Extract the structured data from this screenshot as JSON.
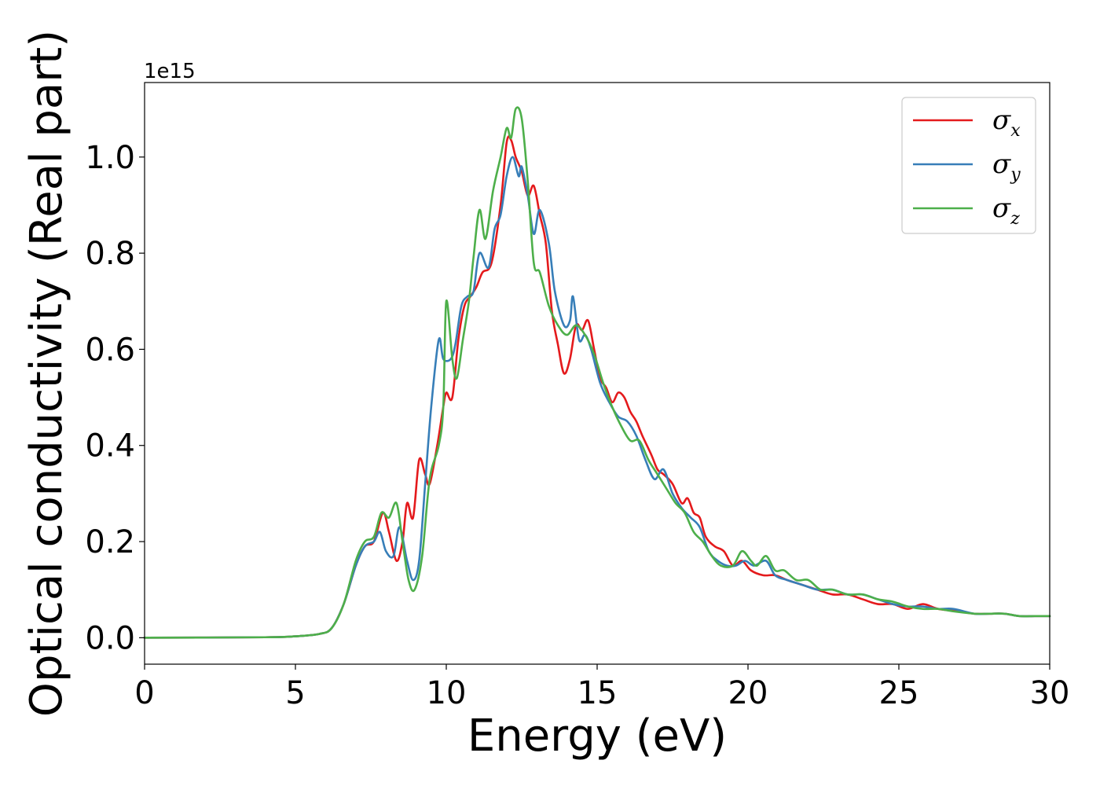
{
  "chart_data": {
    "type": "line",
    "xlabel": "Energy (eV)",
    "ylabel": "Optical conductivity (Real part)",
    "y_offset_label": "1e15",
    "xlim": [
      0,
      30
    ],
    "ylim": [
      -0.055,
      1.155
    ],
    "x_ticks": [
      0,
      5,
      10,
      15,
      20,
      25,
      30
    ],
    "x_tick_labels": [
      "0",
      "5",
      "10",
      "15",
      "20",
      "25",
      "30"
    ],
    "y_ticks": [
      0.0,
      0.2,
      0.4,
      0.6,
      0.8,
      1.0
    ],
    "y_tick_labels": [
      "0.0",
      "0.2",
      "0.4",
      "0.6",
      "0.8",
      "1.0"
    ],
    "grid": false,
    "legend_position": "top-right",
    "series": [
      {
        "name": "σx",
        "symbol": "σ",
        "subscript": "x",
        "color": "#e41a1c",
        "points": [
          [
            0,
            0
          ],
          [
            4,
            0.001
          ],
          [
            5,
            0.003
          ],
          [
            5.8,
            0.008
          ],
          [
            6.2,
            0.02
          ],
          [
            6.6,
            0.07
          ],
          [
            7.0,
            0.15
          ],
          [
            7.3,
            0.19
          ],
          [
            7.6,
            0.2
          ],
          [
            7.9,
            0.26
          ],
          [
            8.1,
            0.22
          ],
          [
            8.35,
            0.16
          ],
          [
            8.55,
            0.2
          ],
          [
            8.7,
            0.28
          ],
          [
            8.9,
            0.25
          ],
          [
            9.1,
            0.37
          ],
          [
            9.3,
            0.34
          ],
          [
            9.45,
            0.32
          ],
          [
            9.7,
            0.4
          ],
          [
            9.9,
            0.48
          ],
          [
            10.0,
            0.51
          ],
          [
            10.2,
            0.5
          ],
          [
            10.4,
            0.62
          ],
          [
            10.6,
            0.69
          ],
          [
            10.8,
            0.71
          ],
          [
            11.0,
            0.73
          ],
          [
            11.2,
            0.76
          ],
          [
            11.5,
            0.78
          ],
          [
            11.8,
            0.9
          ],
          [
            12.0,
            1.03
          ],
          [
            12.15,
            1.035
          ],
          [
            12.3,
            1.0
          ],
          [
            12.5,
            0.97
          ],
          [
            12.7,
            0.92
          ],
          [
            12.9,
            0.94
          ],
          [
            13.1,
            0.88
          ],
          [
            13.3,
            0.82
          ],
          [
            13.5,
            0.68
          ],
          [
            13.7,
            0.61
          ],
          [
            13.9,
            0.55
          ],
          [
            14.1,
            0.58
          ],
          [
            14.3,
            0.65
          ],
          [
            14.5,
            0.64
          ],
          [
            14.7,
            0.66
          ],
          [
            14.9,
            0.6
          ],
          [
            15.1,
            0.54
          ],
          [
            15.3,
            0.52
          ],
          [
            15.5,
            0.49
          ],
          [
            15.7,
            0.51
          ],
          [
            15.9,
            0.5
          ],
          [
            16.1,
            0.47
          ],
          [
            16.3,
            0.45
          ],
          [
            16.5,
            0.42
          ],
          [
            16.8,
            0.38
          ],
          [
            17.0,
            0.35
          ],
          [
            17.2,
            0.34
          ],
          [
            17.5,
            0.32
          ],
          [
            17.8,
            0.28
          ],
          [
            18.0,
            0.29
          ],
          [
            18.2,
            0.26
          ],
          [
            18.4,
            0.25
          ],
          [
            18.6,
            0.21
          ],
          [
            18.9,
            0.19
          ],
          [
            19.2,
            0.18
          ],
          [
            19.5,
            0.15
          ],
          [
            19.8,
            0.16
          ],
          [
            20.1,
            0.14
          ],
          [
            20.5,
            0.13
          ],
          [
            20.9,
            0.13
          ],
          [
            21.3,
            0.12
          ],
          [
            21.8,
            0.11
          ],
          [
            22.3,
            0.1
          ],
          [
            22.8,
            0.09
          ],
          [
            23.3,
            0.09
          ],
          [
            23.8,
            0.08
          ],
          [
            24.3,
            0.07
          ],
          [
            24.8,
            0.07
          ],
          [
            25.3,
            0.06
          ],
          [
            25.8,
            0.07
          ],
          [
            26.3,
            0.06
          ],
          [
            27,
            0.055
          ],
          [
            27.5,
            0.05
          ],
          [
            28,
            0.05
          ],
          [
            28.5,
            0.05
          ],
          [
            29,
            0.045
          ],
          [
            29.5,
            0.045
          ],
          [
            30,
            0.045
          ]
        ]
      },
      {
        "name": "σy",
        "symbol": "σ",
        "subscript": "y",
        "color": "#377eb8",
        "points": [
          [
            0,
            0
          ],
          [
            4,
            0.001
          ],
          [
            5,
            0.003
          ],
          [
            5.8,
            0.008
          ],
          [
            6.2,
            0.02
          ],
          [
            6.6,
            0.07
          ],
          [
            7.0,
            0.15
          ],
          [
            7.3,
            0.19
          ],
          [
            7.6,
            0.2
          ],
          [
            7.8,
            0.22
          ],
          [
            8.0,
            0.18
          ],
          [
            8.25,
            0.17
          ],
          [
            8.45,
            0.23
          ],
          [
            8.7,
            0.16
          ],
          [
            8.9,
            0.12
          ],
          [
            9.1,
            0.16
          ],
          [
            9.3,
            0.32
          ],
          [
            9.5,
            0.48
          ],
          [
            9.75,
            0.62
          ],
          [
            9.9,
            0.58
          ],
          [
            10.15,
            0.58
          ],
          [
            10.3,
            0.61
          ],
          [
            10.5,
            0.69
          ],
          [
            10.7,
            0.71
          ],
          [
            10.9,
            0.72
          ],
          [
            11.1,
            0.8
          ],
          [
            11.4,
            0.77
          ],
          [
            11.6,
            0.85
          ],
          [
            11.8,
            0.88
          ],
          [
            12.0,
            0.96
          ],
          [
            12.2,
            1.0
          ],
          [
            12.4,
            0.96
          ],
          [
            12.5,
            0.98
          ],
          [
            12.7,
            0.92
          ],
          [
            12.9,
            0.84
          ],
          [
            13.1,
            0.89
          ],
          [
            13.4,
            0.82
          ],
          [
            13.6,
            0.72
          ],
          [
            13.9,
            0.65
          ],
          [
            14.1,
            0.66
          ],
          [
            14.2,
            0.71
          ],
          [
            14.4,
            0.62
          ],
          [
            14.6,
            0.63
          ],
          [
            14.8,
            0.6
          ],
          [
            15.1,
            0.53
          ],
          [
            15.4,
            0.49
          ],
          [
            15.7,
            0.46
          ],
          [
            16.0,
            0.45
          ],
          [
            16.3,
            0.42
          ],
          [
            16.6,
            0.37
          ],
          [
            16.9,
            0.33
          ],
          [
            17.2,
            0.35
          ],
          [
            17.5,
            0.3
          ],
          [
            17.8,
            0.27
          ],
          [
            18.1,
            0.25
          ],
          [
            18.4,
            0.23
          ],
          [
            18.7,
            0.18
          ],
          [
            19.0,
            0.16
          ],
          [
            19.3,
            0.15
          ],
          [
            19.6,
            0.15
          ],
          [
            19.9,
            0.16
          ],
          [
            20.2,
            0.15
          ],
          [
            20.6,
            0.16
          ],
          [
            20.9,
            0.13
          ],
          [
            21.3,
            0.12
          ],
          [
            21.8,
            0.11
          ],
          [
            22.3,
            0.1
          ],
          [
            22.8,
            0.1
          ],
          [
            23.3,
            0.09
          ],
          [
            23.8,
            0.09
          ],
          [
            24.3,
            0.08
          ],
          [
            24.8,
            0.07
          ],
          [
            25.3,
            0.065
          ],
          [
            25.8,
            0.065
          ],
          [
            26.3,
            0.06
          ],
          [
            26.8,
            0.06
          ],
          [
            27.5,
            0.05
          ],
          [
            28,
            0.05
          ],
          [
            28.5,
            0.05
          ],
          [
            29,
            0.045
          ],
          [
            29.5,
            0.045
          ],
          [
            30,
            0.045
          ]
        ]
      },
      {
        "name": "σz",
        "symbol": "σ",
        "subscript": "z",
        "color": "#4daf4a",
        "points": [
          [
            0,
            0
          ],
          [
            4,
            0.001
          ],
          [
            5,
            0.003
          ],
          [
            5.8,
            0.008
          ],
          [
            6.2,
            0.02
          ],
          [
            6.6,
            0.07
          ],
          [
            7.0,
            0.16
          ],
          [
            7.3,
            0.2
          ],
          [
            7.6,
            0.21
          ],
          [
            7.85,
            0.26
          ],
          [
            8.1,
            0.25
          ],
          [
            8.35,
            0.28
          ],
          [
            8.55,
            0.2
          ],
          [
            8.75,
            0.12
          ],
          [
            8.95,
            0.1
          ],
          [
            9.2,
            0.17
          ],
          [
            9.45,
            0.33
          ],
          [
            9.75,
            0.4
          ],
          [
            9.9,
            0.48
          ],
          [
            10.0,
            0.7
          ],
          [
            10.2,
            0.58
          ],
          [
            10.35,
            0.54
          ],
          [
            10.55,
            0.62
          ],
          [
            10.75,
            0.7
          ],
          [
            10.9,
            0.79
          ],
          [
            11.1,
            0.89
          ],
          [
            11.3,
            0.83
          ],
          [
            11.55,
            0.93
          ],
          [
            11.8,
            1.0
          ],
          [
            12.0,
            1.06
          ],
          [
            12.15,
            1.04
          ],
          [
            12.3,
            1.1
          ],
          [
            12.5,
            1.08
          ],
          [
            12.7,
            0.95
          ],
          [
            12.9,
            0.78
          ],
          [
            13.1,
            0.76
          ],
          [
            13.4,
            0.69
          ],
          [
            13.7,
            0.65
          ],
          [
            14.0,
            0.63
          ],
          [
            14.3,
            0.65
          ],
          [
            14.6,
            0.63
          ],
          [
            14.9,
            0.59
          ],
          [
            15.2,
            0.53
          ],
          [
            15.5,
            0.48
          ],
          [
            15.8,
            0.44
          ],
          [
            16.1,
            0.41
          ],
          [
            16.4,
            0.41
          ],
          [
            16.7,
            0.37
          ],
          [
            17.0,
            0.34
          ],
          [
            17.3,
            0.31
          ],
          [
            17.6,
            0.28
          ],
          [
            17.9,
            0.26
          ],
          [
            18.2,
            0.22
          ],
          [
            18.5,
            0.2
          ],
          [
            18.8,
            0.17
          ],
          [
            19.1,
            0.15
          ],
          [
            19.5,
            0.15
          ],
          [
            19.8,
            0.18
          ],
          [
            20.1,
            0.16
          ],
          [
            20.3,
            0.15
          ],
          [
            20.6,
            0.17
          ],
          [
            20.9,
            0.14
          ],
          [
            21.2,
            0.14
          ],
          [
            21.6,
            0.12
          ],
          [
            22.0,
            0.12
          ],
          [
            22.4,
            0.1
          ],
          [
            22.8,
            0.1
          ],
          [
            23.3,
            0.09
          ],
          [
            23.8,
            0.09
          ],
          [
            24.3,
            0.08
          ],
          [
            24.8,
            0.075
          ],
          [
            25.3,
            0.065
          ],
          [
            25.8,
            0.06
          ],
          [
            26.3,
            0.06
          ],
          [
            26.8,
            0.055
          ],
          [
            27.5,
            0.05
          ],
          [
            28,
            0.05
          ],
          [
            28.5,
            0.05
          ],
          [
            29,
            0.045
          ],
          [
            29.5,
            0.045
          ],
          [
            30,
            0.045
          ]
        ]
      }
    ]
  }
}
